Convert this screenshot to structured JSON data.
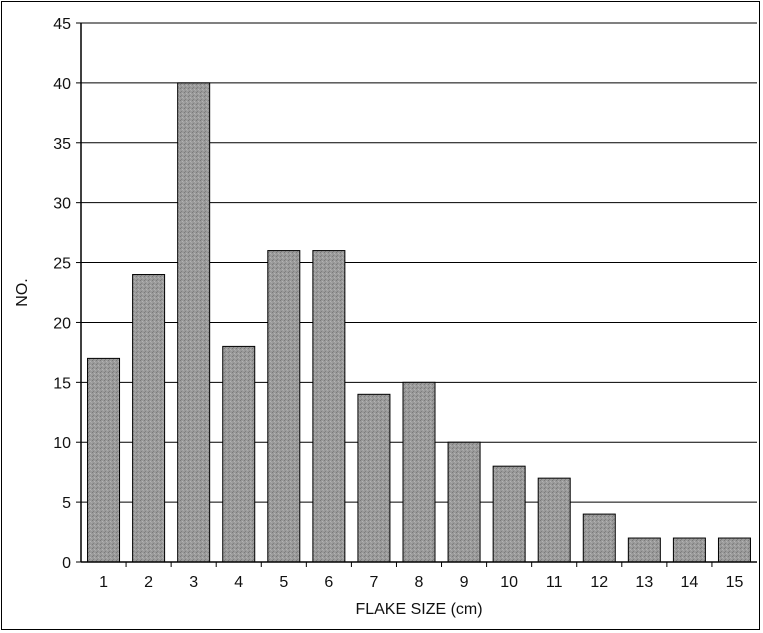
{
  "chart_data": {
    "type": "bar",
    "title": "",
    "xlabel": "FLAKE SIZE (cm)",
    "ylabel": "NO.",
    "categories": [
      "1",
      "2",
      "3",
      "4",
      "5",
      "6",
      "7",
      "8",
      "9",
      "10",
      "11",
      "12",
      "13",
      "14",
      "15"
    ],
    "values": [
      17,
      24,
      40,
      18,
      26,
      26,
      14,
      15,
      10,
      8,
      7,
      4,
      2,
      2,
      2
    ],
    "ylim": [
      0,
      45
    ],
    "yticks": [
      0,
      5,
      10,
      15,
      20,
      25,
      30,
      35,
      40,
      45
    ],
    "grid": true,
    "legend": "none",
    "colors": {
      "bar": "#9a9a9a",
      "bar_stroke": "#000000",
      "grid": "#000000"
    }
  }
}
